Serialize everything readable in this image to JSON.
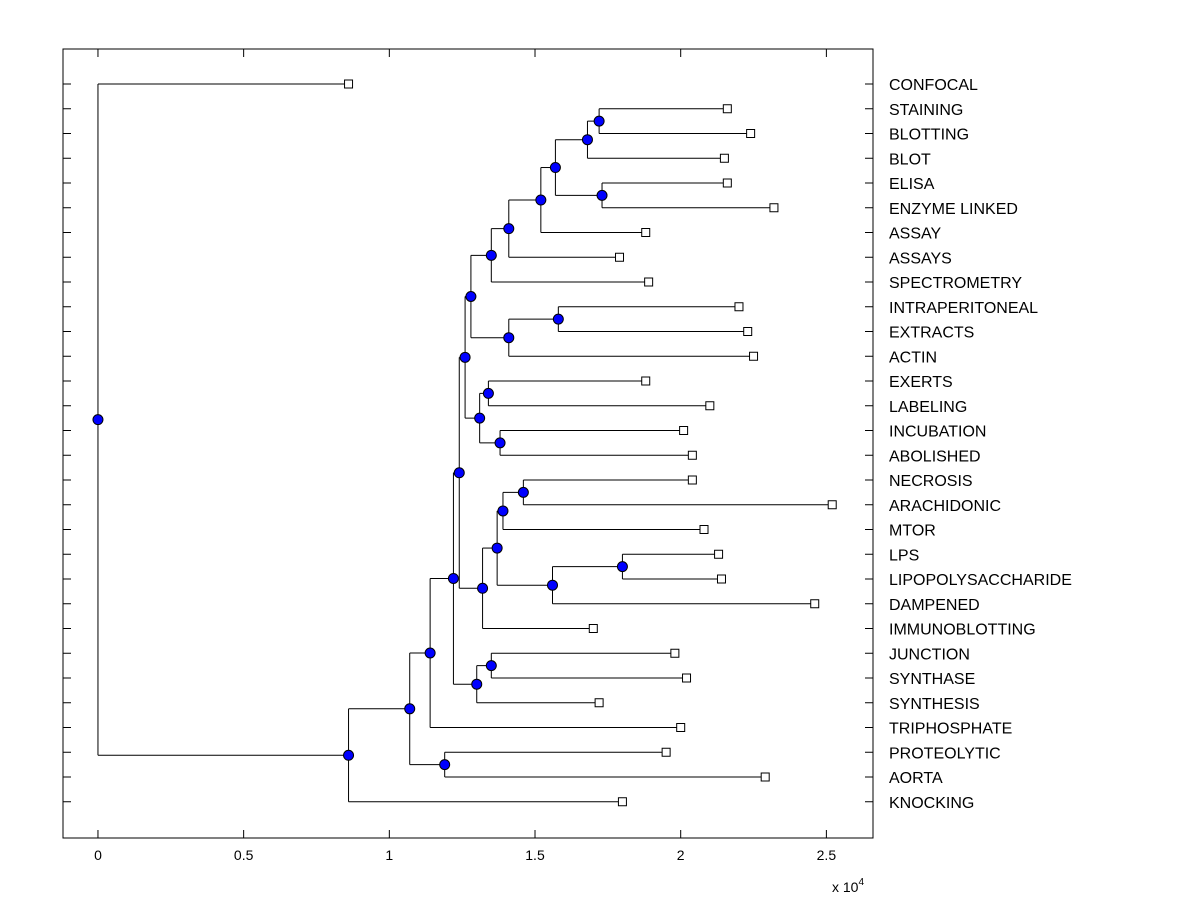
{
  "chart_data": {
    "type": "dendrogram",
    "orientation": "horizontal",
    "xlim": [
      -1200,
      26600
    ],
    "x_ticks": [
      0,
      5000,
      10000,
      15000,
      20000,
      25000
    ],
    "x_tick_labels": [
      "0",
      "0.5",
      "1",
      "1.5",
      "2",
      "2.5"
    ],
    "x_scale_label": {
      "base": "x 10",
      "exponent": "4"
    },
    "grid": false,
    "leaves": [
      "CONFOCAL",
      "STAINING",
      "BLOTTING",
      "BLOT",
      "ELISA",
      "ENZYME LINKED",
      "ASSAY",
      "ASSAYS",
      "SPECTROMETRY",
      "INTRAPERITONEAL",
      "EXTRACTS",
      "ACTIN",
      "EXERTS",
      "LABELING",
      "INCUBATION",
      "ABOLISHED",
      "NECROSIS",
      "ARACHIDONIC",
      "MTOR",
      "LPS",
      "LIPOPOLYSACCHARIDE",
      "DAMPENED",
      "IMMUNOBLOTTING",
      "JUNCTION",
      "SYNTHASE",
      "SYNTHESIS",
      "TRIPHOSPHATE",
      "PROTEOLYTIC",
      "AORTA",
      "KNOCKING"
    ],
    "leaf_values": [
      8600,
      21600,
      22400,
      21500,
      21600,
      23200,
      18800,
      17900,
      18900,
      22000,
      22300,
      22500,
      18800,
      21000,
      20100,
      20400,
      20400,
      25200,
      20800,
      21300,
      21400,
      24600,
      17000,
      19800,
      20200,
      17200,
      20000,
      19500,
      22900,
      18000
    ],
    "merges": [
      {
        "id": "n1",
        "value": 17200,
        "children": [
          "STAINING",
          "BLOTTING"
        ]
      },
      {
        "id": "n2",
        "value": 16800,
        "children": [
          "n1",
          "BLOT"
        ]
      },
      {
        "id": "n3",
        "value": 17300,
        "children": [
          "ELISA",
          "ENZYME LINKED"
        ]
      },
      {
        "id": "n4",
        "value": 15700,
        "children": [
          "n2",
          "n3"
        ]
      },
      {
        "id": "n5",
        "value": 15200,
        "children": [
          "n4",
          "ASSAY"
        ]
      },
      {
        "id": "n6",
        "value": 14100,
        "children": [
          "n5",
          "ASSAYS"
        ]
      },
      {
        "id": "n7",
        "value": 13500,
        "children": [
          "n6",
          "SPECTROMETRY"
        ]
      },
      {
        "id": "n8",
        "value": 15800,
        "children": [
          "INTRAPERITONEAL",
          "EXTRACTS"
        ]
      },
      {
        "id": "n9",
        "value": 14100,
        "children": [
          "n8",
          "ACTIN"
        ]
      },
      {
        "id": "n10",
        "value": 12800,
        "children": [
          "n7",
          "n9"
        ]
      },
      {
        "id": "n11",
        "value": 13400,
        "children": [
          "EXERTS",
          "LABELING"
        ]
      },
      {
        "id": "n12",
        "value": 13800,
        "children": [
          "INCUBATION",
          "ABOLISHED"
        ]
      },
      {
        "id": "n13",
        "value": 13100,
        "children": [
          "n11",
          "n12"
        ]
      },
      {
        "id": "n14",
        "value": 12600,
        "children": [
          "n10",
          "n13"
        ]
      },
      {
        "id": "n15",
        "value": 14600,
        "children": [
          "NECROSIS",
          "ARACHIDONIC"
        ]
      },
      {
        "id": "n16",
        "value": 13900,
        "children": [
          "n15",
          "MTOR"
        ]
      },
      {
        "id": "n17",
        "value": 18000,
        "children": [
          "LPS",
          "LIPOPOLYSACCHARIDE"
        ]
      },
      {
        "id": "n18",
        "value": 15600,
        "children": [
          "n17",
          "DAMPENED"
        ]
      },
      {
        "id": "n19",
        "value": 13700,
        "children": [
          "n16",
          "n18"
        ]
      },
      {
        "id": "n20",
        "value": 13200,
        "children": [
          "n19",
          "IMMUNOBLOTTING"
        ]
      },
      {
        "id": "n21",
        "value": 12400,
        "children": [
          "n14",
          "n20"
        ]
      },
      {
        "id": "n22",
        "value": 13500,
        "children": [
          "JUNCTION",
          "SYNTHASE"
        ]
      },
      {
        "id": "n23",
        "value": 13000,
        "children": [
          "n22",
          "SYNTHESIS"
        ]
      },
      {
        "id": "n24",
        "value": 12200,
        "children": [
          "n21",
          "n23"
        ]
      },
      {
        "id": "n25",
        "value": 11400,
        "children": [
          "n24",
          "TRIPHOSPHATE"
        ]
      },
      {
        "id": "n26",
        "value": 11900,
        "children": [
          "PROTEOLYTIC",
          "AORTA"
        ]
      },
      {
        "id": "n27",
        "value": 10700,
        "children": [
          "n25",
          "n26"
        ]
      },
      {
        "id": "n28",
        "value": 8600,
        "children": [
          "n27",
          "KNOCKING"
        ]
      },
      {
        "id": "n29",
        "value": 0,
        "children": [
          "CONFOCAL",
          "n28"
        ]
      }
    ],
    "colors": {
      "node_fill": "#0000ff",
      "node_stroke": "#000000",
      "line": "#000000",
      "leaf_marker_fill": "#ffffff"
    }
  }
}
